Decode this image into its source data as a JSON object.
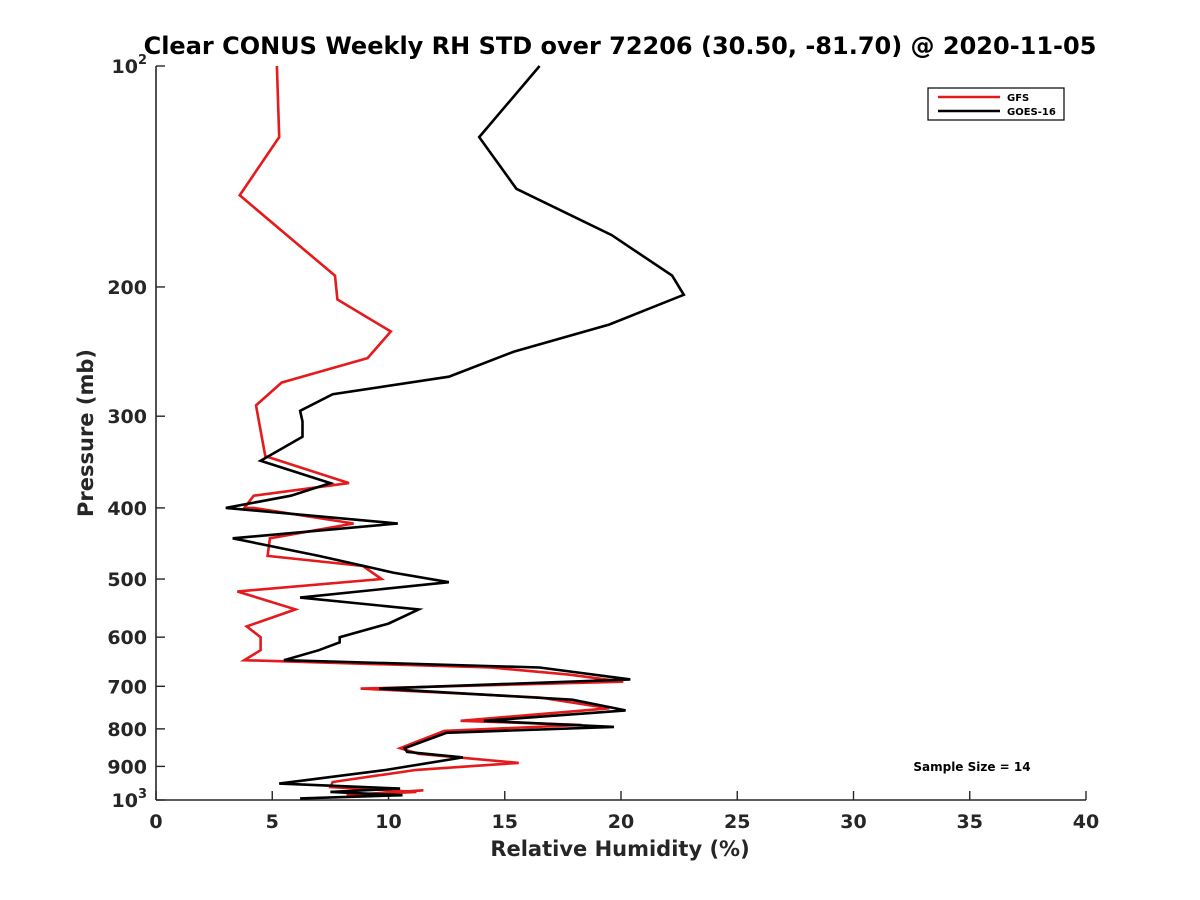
{
  "chart_data": {
    "type": "line",
    "title": "Clear CONUS Weekly RH STD over 72206 (30.50, -81.70) @ 2020-11-05",
    "xlabel": "Relative Humidity (%)",
    "ylabel": "Pressure (mb)",
    "xlim": [
      0,
      40
    ],
    "ylim": [
      100,
      1000
    ],
    "y_scale": "log",
    "y_reversed": true,
    "x_ticks": [
      "0",
      "5",
      "10",
      "15",
      "20",
      "25",
      "30",
      "35",
      "40"
    ],
    "y_ticks": [
      {
        "value": 100,
        "base": "10",
        "exp": "2"
      },
      {
        "value": 200,
        "label": "200"
      },
      {
        "value": 300,
        "label": "300"
      },
      {
        "value": 400,
        "label": "400"
      },
      {
        "value": 500,
        "label": "500"
      },
      {
        "value": 600,
        "label": "600"
      },
      {
        "value": 700,
        "label": "700"
      },
      {
        "value": 800,
        "label": "800"
      },
      {
        "value": 900,
        "label": "900"
      },
      {
        "value": 1000,
        "base": "10",
        "exp": "3"
      }
    ],
    "grid": false,
    "legend_position": "top-right",
    "annotation": "Sample Size = 14",
    "series": [
      {
        "name": "GFS",
        "color": "#e41a1c",
        "points": [
          [
            5.2,
            100
          ],
          [
            5.3,
            125
          ],
          [
            3.6,
            150
          ],
          [
            6.1,
            175
          ],
          [
            7.7,
            193
          ],
          [
            7.8,
            208
          ],
          [
            10.1,
            230
          ],
          [
            9.1,
            250
          ],
          [
            5.4,
            270
          ],
          [
            4.3,
            290
          ],
          [
            4.7,
            340
          ],
          [
            8.3,
            370
          ],
          [
            4.2,
            385
          ],
          [
            3.8,
            400
          ],
          [
            4.2,
            400
          ],
          [
            8.5,
            420
          ],
          [
            4.9,
            440
          ],
          [
            4.8,
            465
          ],
          [
            8.9,
            480
          ],
          [
            9.7,
            500
          ],
          [
            3.5,
            520
          ],
          [
            6.0,
            550
          ],
          [
            3.9,
            580
          ],
          [
            4.5,
            600
          ],
          [
            4.5,
            625
          ],
          [
            3.8,
            645
          ],
          [
            14.4,
            660
          ],
          [
            17.8,
            675
          ],
          [
            20.1,
            690
          ],
          [
            8.8,
            705
          ],
          [
            16.5,
            725
          ],
          [
            19.5,
            750
          ],
          [
            13.1,
            780
          ],
          [
            18.3,
            790
          ],
          [
            12.4,
            805
          ],
          [
            10.5,
            850
          ],
          [
            11.3,
            865
          ],
          [
            15.6,
            890
          ],
          [
            11.2,
            910
          ],
          [
            7.6,
            945
          ],
          [
            7.5,
            960
          ],
          [
            11.2,
            975
          ],
          [
            8.2,
            985
          ],
          [
            11.5,
            970
          ],
          [
            8.5,
            985
          ]
        ]
      },
      {
        "name": "GOES-16",
        "color": "#000000",
        "points": [
          [
            16.5,
            100
          ],
          [
            13.9,
            125
          ],
          [
            15.5,
            147
          ],
          [
            19.6,
            170
          ],
          [
            22.2,
            193
          ],
          [
            22.7,
            205
          ],
          [
            19.5,
            225
          ],
          [
            15.4,
            245
          ],
          [
            12.6,
            265
          ],
          [
            7.6,
            280
          ],
          [
            6.2,
            295
          ],
          [
            6.3,
            305
          ],
          [
            6.3,
            320
          ],
          [
            4.5,
            345
          ],
          [
            7.5,
            370
          ],
          [
            5.8,
            385
          ],
          [
            3.0,
            400
          ],
          [
            10.4,
            420
          ],
          [
            3.3,
            440
          ],
          [
            7.0,
            465
          ],
          [
            10.2,
            490
          ],
          [
            12.6,
            505
          ],
          [
            6.2,
            530
          ],
          [
            11.3,
            550
          ],
          [
            10.0,
            575
          ],
          [
            7.9,
            600
          ],
          [
            7.9,
            610
          ],
          [
            7.0,
            625
          ],
          [
            5.5,
            645
          ],
          [
            16.5,
            660
          ],
          [
            20.4,
            685
          ],
          [
            9.6,
            705
          ],
          [
            17.9,
            730
          ],
          [
            20.2,
            755
          ],
          [
            14.1,
            780
          ],
          [
            19.7,
            795
          ],
          [
            12.5,
            810
          ],
          [
            10.7,
            850
          ],
          [
            10.8,
            860
          ],
          [
            13.2,
            875
          ],
          [
            9.9,
            910
          ],
          [
            5.3,
            950
          ],
          [
            10.5,
            965
          ],
          [
            7.5,
            975
          ],
          [
            10.6,
            985
          ],
          [
            6.2,
            995
          ]
        ]
      }
    ]
  }
}
